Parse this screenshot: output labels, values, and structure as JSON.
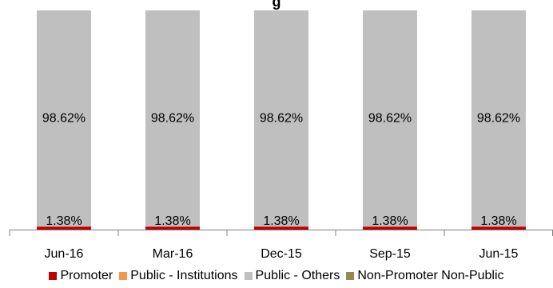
{
  "chart_data": {
    "type": "bar",
    "stacked": true,
    "title": "g",
    "categories": [
      "Jun-16",
      "Mar-16",
      "Dec-15",
      "Sep-15",
      "Jun-15"
    ],
    "series": [
      {
        "name": "Promoter",
        "color": "#c00000",
        "values": [
          1.38,
          1.38,
          1.38,
          1.38,
          1.38
        ],
        "labels": [
          "1.38%",
          "1.38%",
          "1.38%",
          "1.38%",
          "1.38%"
        ]
      },
      {
        "name": "Public - Institutions",
        "color": "#f79646",
        "values": [
          0,
          0,
          0,
          0,
          0
        ]
      },
      {
        "name": "Public - Others",
        "color": "#bfbfbf",
        "values": [
          98.62,
          98.62,
          98.62,
          98.62,
          98.62
        ],
        "labels": [
          "98.62%",
          "98.62%",
          "98.62%",
          "98.62%",
          "98.62%"
        ]
      },
      {
        "name": "Non-Promoter Non-Public",
        "color": "#938953",
        "values": [
          0,
          0,
          0,
          0,
          0
        ]
      }
    ],
    "ylim": [
      0,
      100
    ],
    "grid": false,
    "legend_position": "bottom"
  }
}
